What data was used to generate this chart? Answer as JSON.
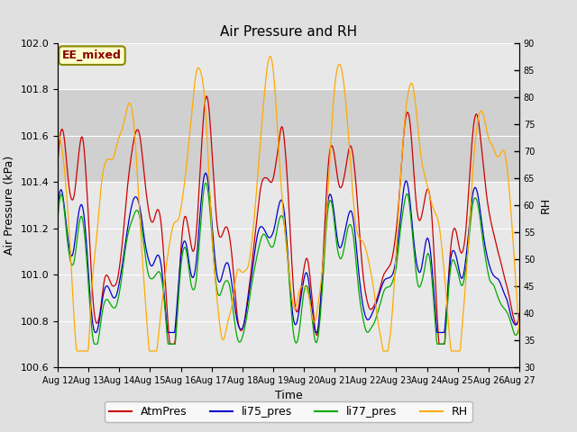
{
  "title": "Air Pressure and RH",
  "xlabel": "Time",
  "ylabel_left": "Air Pressure (kPa)",
  "ylabel_right": "RH",
  "ylim_left": [
    100.6,
    102.0
  ],
  "ylim_right": [
    30,
    90
  ],
  "yticks_left": [
    100.6,
    100.8,
    101.0,
    101.2,
    101.4,
    101.6,
    101.8,
    102.0
  ],
  "yticks_right": [
    30,
    35,
    40,
    45,
    50,
    55,
    60,
    65,
    70,
    75,
    80,
    85,
    90
  ],
  "shade_band": [
    101.4,
    101.8
  ],
  "colors": {
    "AtmPres": "#cc0000",
    "li75_pres": "#0000cc",
    "li77_pres": "#00aa00",
    "RH": "#ffaa00"
  },
  "legend_label_box": "EE_mixed",
  "legend_box_facecolor": "#ffffcc",
  "legend_box_edgecolor": "#888800",
  "legend_box_textcolor": "#880000",
  "bg_color": "#e0e0e0",
  "axes_bg": "#e8e8e8",
  "grid_color": "#ffffff",
  "shade_color": "#d0d0d0"
}
